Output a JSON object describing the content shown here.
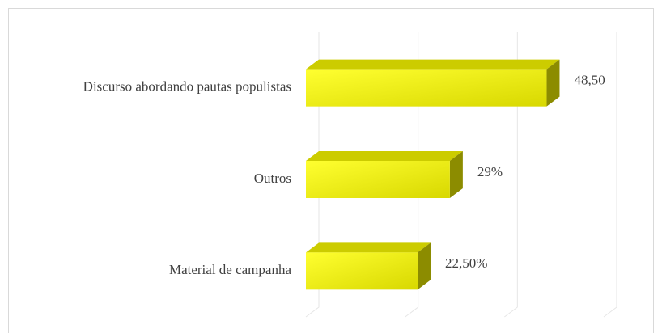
{
  "chart_data": {
    "type": "bar3d_horizontal",
    "categories": [
      "Discurso abordando pautas populistas",
      "Outros",
      "Material de campanha"
    ],
    "values": [
      48.5,
      29,
      22.5
    ],
    "value_labels": [
      "48,50",
      "29%",
      "22,50%"
    ],
    "color": "#ffff00",
    "xlim": [
      0,
      60
    ],
    "xticks": [
      0,
      20,
      40,
      60
    ],
    "grid": true
  }
}
